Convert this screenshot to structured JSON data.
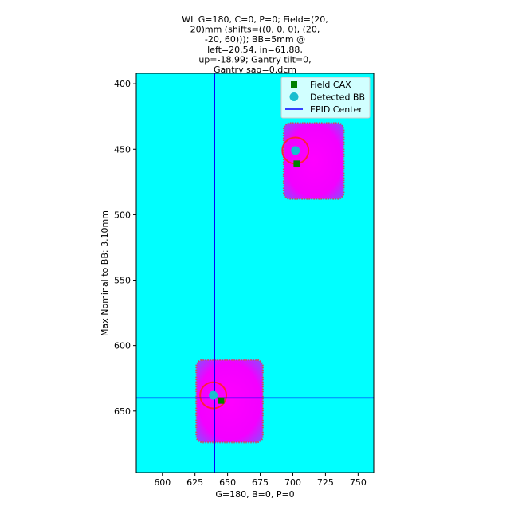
{
  "chart_data": {
    "type": "image-scatter",
    "title_lines": [
      "WL G=180, C=0, P=0; Field=(20,",
      "20)mm (shifts=((0, 0, 0), (20,",
      "-20, 60))); BB=5mm @",
      "left=20.54, in=61.88,",
      "up=-18.99; Gantry tilt=0,",
      "Gantry sag=0.dcm"
    ],
    "xlabel": "G=180, B=0, P=0",
    "ylabel": "Max Nominal to BB: 3.10mm",
    "xlim": [
      580,
      762
    ],
    "ylim": [
      697,
      392
    ],
    "y_inverted": true,
    "xticks": [
      600,
      625,
      650,
      675,
      700,
      725,
      750
    ],
    "yticks": [
      400,
      450,
      500,
      550,
      600,
      650
    ],
    "background_color": "#00ffff",
    "fields": [
      {
        "x0": 626,
        "x1": 677,
        "y0": 611,
        "y1": 674,
        "color": "#ff00ff"
      },
      {
        "x0": 693,
        "x1": 739,
        "y0": 430,
        "y1": 488,
        "color": "#ff00ff"
      }
    ],
    "bb_circles": [
      {
        "x": 639,
        "y": 638,
        "r": 10
      },
      {
        "x": 702,
        "y": 451,
        "r": 10
      }
    ],
    "legend_position": "upper right",
    "series": [
      {
        "name": "Field CAX",
        "marker": "square",
        "color": "#008000",
        "points": [
          [
            645,
            642
          ],
          [
            703,
            461
          ]
        ]
      },
      {
        "name": "Detected BB",
        "marker": "circle",
        "color": "#17becf",
        "points": [
          [
            639,
            638
          ],
          [
            702,
            451
          ]
        ]
      },
      {
        "name": "EPID Center",
        "marker": "line",
        "color": "#0000ff",
        "vline": 640,
        "hline": 640
      }
    ]
  }
}
